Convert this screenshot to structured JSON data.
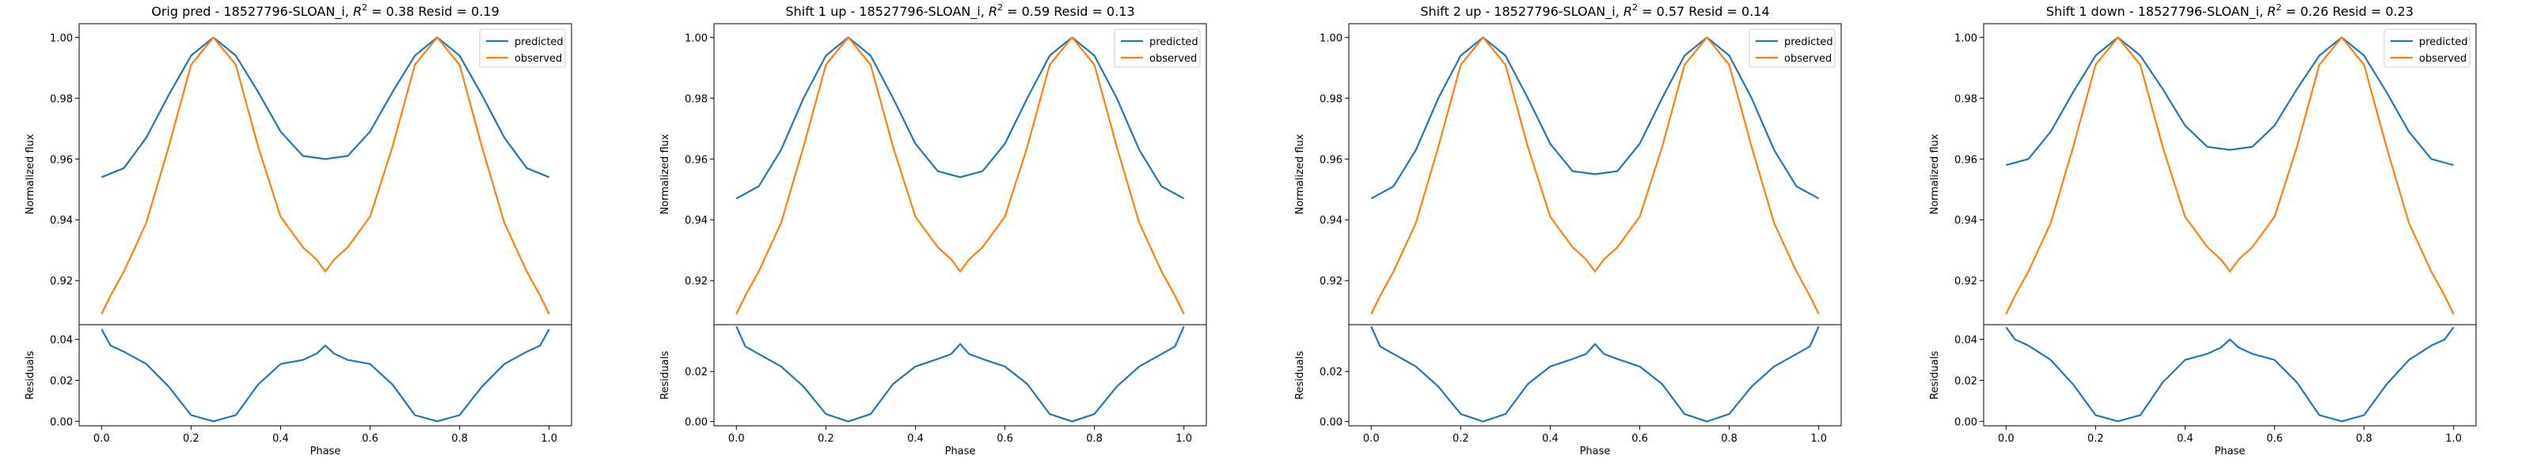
{
  "colors": {
    "predicted": "#1f77b4",
    "observed": "#ff7f0e",
    "axes": "#000000",
    "background": "#ffffff"
  },
  "chart_data": [
    {
      "type": "line",
      "title": "Orig pred - 18527796-SLOAN_i, R² = 0.38 Resid = 0.19",
      "title_prefix": "Orig pred - 18527796-SLOAN_i, ",
      "r2": "0.38",
      "resid": "0.19",
      "xlabel": "Phase",
      "ylabel_top": "Normalized flux",
      "ylabel_bottom": "Residuals",
      "xlim": [
        -0.05,
        1.05
      ],
      "xticks": [
        "0.0",
        "0.2",
        "0.4",
        "0.6",
        "0.8",
        "1.0"
      ],
      "top_ylim": [
        0.9055,
        1.0045
      ],
      "top_yticks": [
        "0.92",
        "0.94",
        "0.96",
        "0.98",
        "1.00"
      ],
      "bottom_ylim": [
        -0.0022,
        0.0472
      ],
      "bottom_yticks": [
        "0.00",
        "0.02",
        "0.04"
      ],
      "legend": [
        "predicted",
        "observed"
      ],
      "legend_position": "upper right",
      "series": [
        {
          "name": "predicted",
          "x": [
            0.0,
            0.05,
            0.1,
            0.15,
            0.2,
            0.25,
            0.3,
            0.35,
            0.4,
            0.45,
            0.5,
            0.55,
            0.6,
            0.65,
            0.7,
            0.75,
            0.8,
            0.85,
            0.9,
            0.95,
            1.0
          ],
          "y": [
            0.954,
            0.957,
            0.967,
            0.981,
            0.994,
            1.0,
            0.994,
            0.982,
            0.969,
            0.961,
            0.96,
            0.961,
            0.969,
            0.982,
            0.994,
            1.0,
            0.994,
            0.981,
            0.967,
            0.957,
            0.954
          ]
        },
        {
          "name": "observed",
          "x": [
            0.0,
            0.02,
            0.05,
            0.1,
            0.15,
            0.2,
            0.25,
            0.3,
            0.35,
            0.4,
            0.45,
            0.48,
            0.5,
            0.52,
            0.55,
            0.6,
            0.65,
            0.7,
            0.75,
            0.8,
            0.85,
            0.9,
            0.95,
            0.98,
            1.0
          ],
          "y": [
            0.909,
            0.915,
            0.923,
            0.939,
            0.964,
            0.991,
            1.0,
            0.991,
            0.964,
            0.941,
            0.931,
            0.927,
            0.923,
            0.927,
            0.931,
            0.941,
            0.964,
            0.991,
            1.0,
            0.991,
            0.964,
            0.939,
            0.923,
            0.915,
            0.909
          ]
        },
        {
          "name": "residuals",
          "x": [
            0.0,
            0.02,
            0.05,
            0.1,
            0.15,
            0.2,
            0.25,
            0.3,
            0.35,
            0.4,
            0.45,
            0.48,
            0.5,
            0.52,
            0.55,
            0.6,
            0.65,
            0.7,
            0.75,
            0.8,
            0.85,
            0.9,
            0.95,
            0.98,
            1.0
          ],
          "y": [
            0.045,
            0.037,
            0.034,
            0.028,
            0.017,
            0.003,
            0.0,
            0.003,
            0.018,
            0.028,
            0.03,
            0.033,
            0.037,
            0.033,
            0.03,
            0.028,
            0.018,
            0.003,
            0.0,
            0.003,
            0.017,
            0.028,
            0.034,
            0.037,
            0.045
          ]
        }
      ]
    },
    {
      "type": "line",
      "title": "Shift 1 up - 18527796-SLOAN_i, R² = 0.59 Resid = 0.13",
      "title_prefix": "Shift 1 up - 18527796-SLOAN_i, ",
      "r2": "0.59",
      "resid": "0.13",
      "xlabel": "Phase",
      "ylabel_top": "Normalized flux",
      "ylabel_bottom": "Residuals",
      "xlim": [
        -0.05,
        1.05
      ],
      "xticks": [
        "0.0",
        "0.2",
        "0.4",
        "0.6",
        "0.8",
        "1.0"
      ],
      "top_ylim": [
        0.9055,
        1.0045
      ],
      "top_yticks": [
        "0.92",
        "0.94",
        "0.96",
        "0.98",
        "1.00"
      ],
      "bottom_ylim": [
        -0.0017,
        0.0387
      ],
      "bottom_yticks": [
        "0.00",
        "0.02"
      ],
      "legend": [
        "predicted",
        "observed"
      ],
      "legend_position": "upper right",
      "series": [
        {
          "name": "predicted",
          "x": [
            0.0,
            0.05,
            0.1,
            0.15,
            0.2,
            0.25,
            0.3,
            0.35,
            0.4,
            0.45,
            0.5,
            0.55,
            0.6,
            0.65,
            0.7,
            0.75,
            0.8,
            0.85,
            0.9,
            0.95,
            1.0
          ],
          "y": [
            0.947,
            0.951,
            0.963,
            0.98,
            0.994,
            1.0,
            0.994,
            0.98,
            0.965,
            0.956,
            0.954,
            0.956,
            0.965,
            0.98,
            0.994,
            1.0,
            0.994,
            0.98,
            0.963,
            0.951,
            0.947
          ]
        },
        {
          "name": "observed",
          "x": [
            0.0,
            0.02,
            0.05,
            0.1,
            0.15,
            0.2,
            0.25,
            0.3,
            0.35,
            0.4,
            0.45,
            0.48,
            0.5,
            0.52,
            0.55,
            0.6,
            0.65,
            0.7,
            0.75,
            0.8,
            0.85,
            0.9,
            0.95,
            0.98,
            1.0
          ],
          "y": [
            0.909,
            0.915,
            0.923,
            0.939,
            0.964,
            0.991,
            1.0,
            0.991,
            0.964,
            0.941,
            0.931,
            0.927,
            0.923,
            0.927,
            0.931,
            0.941,
            0.964,
            0.991,
            1.0,
            0.991,
            0.964,
            0.939,
            0.923,
            0.915,
            0.909
          ]
        },
        {
          "name": "residuals",
          "x": [
            0.0,
            0.02,
            0.05,
            0.1,
            0.15,
            0.2,
            0.25,
            0.3,
            0.35,
            0.4,
            0.45,
            0.48,
            0.5,
            0.52,
            0.55,
            0.6,
            0.65,
            0.7,
            0.75,
            0.8,
            0.85,
            0.9,
            0.95,
            0.98,
            1.0
          ],
          "y": [
            0.038,
            0.03,
            0.027,
            0.022,
            0.014,
            0.003,
            0.0,
            0.003,
            0.015,
            0.022,
            0.025,
            0.027,
            0.031,
            0.027,
            0.025,
            0.022,
            0.015,
            0.003,
            0.0,
            0.003,
            0.014,
            0.022,
            0.027,
            0.03,
            0.038
          ]
        }
      ]
    },
    {
      "type": "line",
      "title": "Shift 2 up - 18527796-SLOAN_i, R² = 0.57 Resid = 0.14",
      "title_prefix": "Shift 2 up - 18527796-SLOAN_i, ",
      "r2": "0.57",
      "resid": "0.14",
      "xlabel": "Phase",
      "ylabel_top": "Normalized flux",
      "ylabel_bottom": "Residuals",
      "xlim": [
        -0.05,
        1.05
      ],
      "xticks": [
        "0.0",
        "0.2",
        "0.4",
        "0.6",
        "0.8",
        "1.0"
      ],
      "top_ylim": [
        0.9055,
        1.0045
      ],
      "top_yticks": [
        "0.92",
        "0.94",
        "0.96",
        "0.98",
        "1.00"
      ],
      "bottom_ylim": [
        -0.0017,
        0.0387
      ],
      "bottom_yticks": [
        "0.00",
        "0.02"
      ],
      "legend": [
        "predicted",
        "observed"
      ],
      "legend_position": "upper right",
      "series": [
        {
          "name": "predicted",
          "x": [
            0.0,
            0.05,
            0.1,
            0.15,
            0.2,
            0.25,
            0.3,
            0.35,
            0.4,
            0.45,
            0.5,
            0.55,
            0.6,
            0.65,
            0.7,
            0.75,
            0.8,
            0.85,
            0.9,
            0.95,
            1.0
          ],
          "y": [
            0.947,
            0.951,
            0.963,
            0.98,
            0.994,
            1.0,
            0.994,
            0.98,
            0.965,
            0.956,
            0.955,
            0.956,
            0.965,
            0.98,
            0.994,
            1.0,
            0.994,
            0.98,
            0.963,
            0.951,
            0.947
          ]
        },
        {
          "name": "observed",
          "x": [
            0.0,
            0.02,
            0.05,
            0.1,
            0.15,
            0.2,
            0.25,
            0.3,
            0.35,
            0.4,
            0.45,
            0.48,
            0.5,
            0.52,
            0.55,
            0.6,
            0.65,
            0.7,
            0.75,
            0.8,
            0.85,
            0.9,
            0.95,
            0.98,
            1.0
          ],
          "y": [
            0.909,
            0.915,
            0.923,
            0.939,
            0.964,
            0.991,
            1.0,
            0.991,
            0.964,
            0.941,
            0.931,
            0.927,
            0.923,
            0.927,
            0.931,
            0.941,
            0.964,
            0.991,
            1.0,
            0.991,
            0.964,
            0.939,
            0.923,
            0.915,
            0.909
          ]
        },
        {
          "name": "residuals",
          "x": [
            0.0,
            0.02,
            0.05,
            0.1,
            0.15,
            0.2,
            0.25,
            0.3,
            0.35,
            0.4,
            0.45,
            0.48,
            0.5,
            0.52,
            0.55,
            0.6,
            0.65,
            0.7,
            0.75,
            0.8,
            0.85,
            0.9,
            0.95,
            0.98,
            1.0
          ],
          "y": [
            0.038,
            0.03,
            0.027,
            0.022,
            0.014,
            0.003,
            0.0,
            0.003,
            0.015,
            0.022,
            0.025,
            0.027,
            0.031,
            0.027,
            0.025,
            0.022,
            0.015,
            0.003,
            0.0,
            0.003,
            0.014,
            0.022,
            0.027,
            0.03,
            0.038
          ]
        }
      ]
    },
    {
      "type": "line",
      "title": "Shift 1 down - 18527796-SLOAN_i, R² = 0.26 Resid = 0.23",
      "title_prefix": "Shift 1 down - 18527796-SLOAN_i, ",
      "r2": "0.26",
      "resid": "0.23",
      "xlabel": "Phase",
      "ylabel_top": "Normalized flux",
      "ylabel_bottom": "Residuals",
      "xlim": [
        -0.05,
        1.05
      ],
      "xticks": [
        "0.0",
        "0.2",
        "0.4",
        "0.6",
        "0.8",
        "1.0"
      ],
      "top_ylim": [
        0.9055,
        1.0045
      ],
      "top_yticks": [
        "0.92",
        "0.94",
        "0.96",
        "0.98",
        "1.00"
      ],
      "bottom_ylim": [
        -0.0022,
        0.0472
      ],
      "bottom_yticks": [
        "0.00",
        "0.02",
        "0.04"
      ],
      "legend": [
        "predicted",
        "observed"
      ],
      "legend_position": "upper right",
      "series": [
        {
          "name": "predicted",
          "x": [
            0.0,
            0.05,
            0.1,
            0.15,
            0.2,
            0.25,
            0.3,
            0.35,
            0.4,
            0.45,
            0.5,
            0.55,
            0.6,
            0.65,
            0.7,
            0.75,
            0.8,
            0.85,
            0.9,
            0.95,
            1.0
          ],
          "y": [
            0.958,
            0.96,
            0.969,
            0.982,
            0.994,
            1.0,
            0.994,
            0.983,
            0.971,
            0.964,
            0.963,
            0.964,
            0.971,
            0.983,
            0.994,
            1.0,
            0.994,
            0.982,
            0.969,
            0.96,
            0.958
          ]
        },
        {
          "name": "observed",
          "x": [
            0.0,
            0.02,
            0.05,
            0.1,
            0.15,
            0.2,
            0.25,
            0.3,
            0.35,
            0.4,
            0.45,
            0.48,
            0.5,
            0.52,
            0.55,
            0.6,
            0.65,
            0.7,
            0.75,
            0.8,
            0.85,
            0.9,
            0.95,
            0.98,
            1.0
          ],
          "y": [
            0.909,
            0.915,
            0.923,
            0.939,
            0.964,
            0.991,
            1.0,
            0.991,
            0.964,
            0.941,
            0.931,
            0.927,
            0.923,
            0.927,
            0.931,
            0.941,
            0.964,
            0.991,
            1.0,
            0.991,
            0.964,
            0.939,
            0.923,
            0.915,
            0.909
          ]
        },
        {
          "name": "residuals",
          "x": [
            0.0,
            0.02,
            0.05,
            0.1,
            0.15,
            0.2,
            0.25,
            0.3,
            0.35,
            0.4,
            0.45,
            0.48,
            0.5,
            0.52,
            0.55,
            0.6,
            0.65,
            0.7,
            0.75,
            0.8,
            0.85,
            0.9,
            0.95,
            0.98,
            1.0
          ],
          "y": [
            0.046,
            0.04,
            0.037,
            0.03,
            0.018,
            0.003,
            0.0,
            0.003,
            0.019,
            0.03,
            0.033,
            0.036,
            0.04,
            0.036,
            0.033,
            0.03,
            0.019,
            0.003,
            0.0,
            0.003,
            0.018,
            0.03,
            0.037,
            0.04,
            0.046
          ]
        }
      ]
    }
  ]
}
